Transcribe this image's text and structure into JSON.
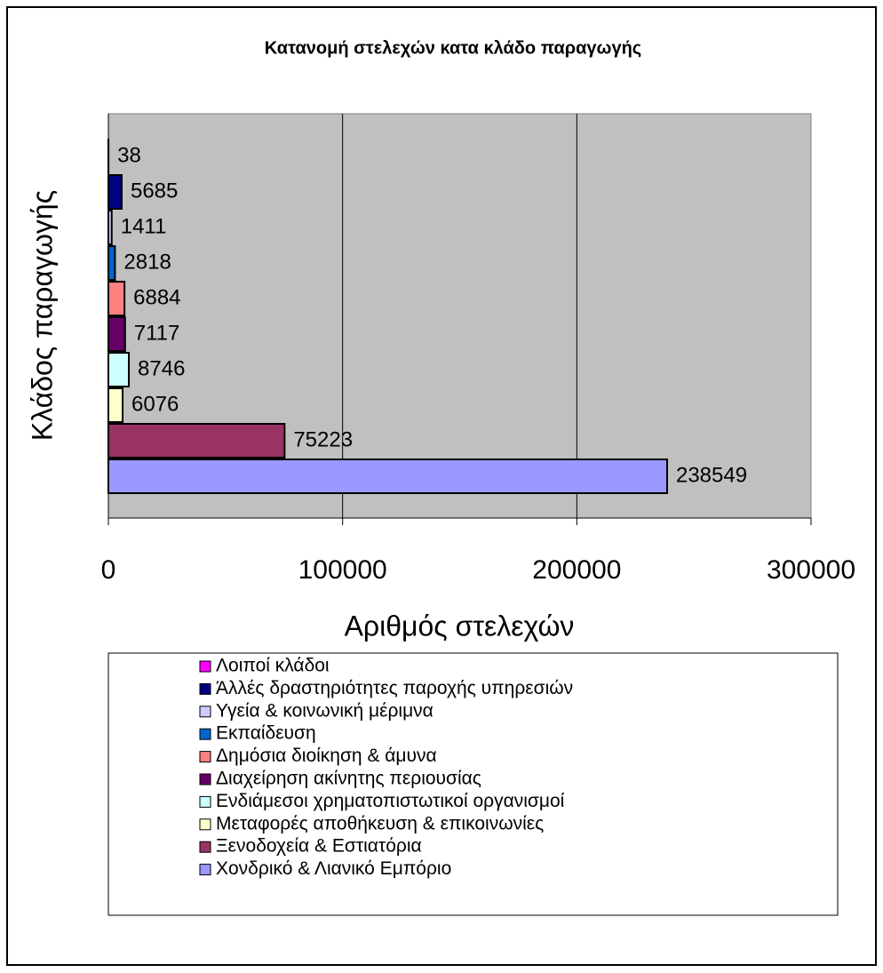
{
  "chart_data": {
    "type": "bar",
    "orientation": "horizontal",
    "title": "Κατανομή στελεχών κατα κλάδο παραγωγής",
    "x_label": "Αριθμός στελεχών",
    "y_label": "Κλάδος παραγωγής",
    "categories": [
      "Λοιποί κλάδοι",
      "Άλλές δραστηριότητες παροχής υπηρεσιών",
      "Υγεία & κοινωνική μέριμνα",
      "Εκπαίδευση",
      "Δημόσια διοίκηση & άμυνα",
      "Διαχείρηση ακίνητης περιουσίας",
      "Ενδιάμεσοι χρηματοπιστωτικοί οργανισμοί",
      "Μεταφορές αποθήκευση & επικοινωνίες",
      "Ξενοδοχεία & Εστιατόρια",
      "Χονδρικό & Λιανικό Εμπόριο"
    ],
    "values": [
      38,
      5685,
      1411,
      2818,
      6884,
      7117,
      8746,
      6076,
      75223,
      238549
    ],
    "colors": [
      "#ff00ff",
      "#000080",
      "#ccccff",
      "#0066cc",
      "#ff8080",
      "#660066",
      "#ccffff",
      "#ffffcc",
      "#993366",
      "#9999ff"
    ],
    "xlim": [
      0,
      300000
    ],
    "xticks": [
      0,
      100000,
      200000,
      300000
    ],
    "grid": true
  }
}
